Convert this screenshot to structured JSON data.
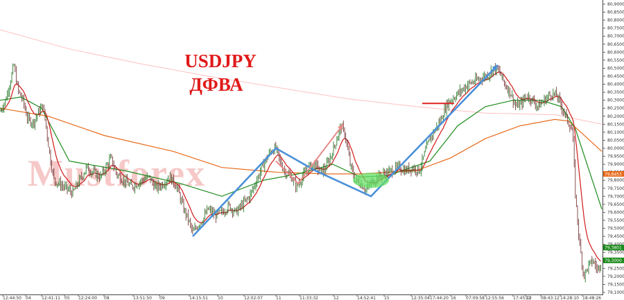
{
  "chart_data": {
    "type": "candlestick",
    "title": "USDJPY",
    "subtitle": "ДФВА",
    "watermark": "Mustforex",
    "ylim": [
      79.1,
      80.9
    ],
    "y_ticks": [
      "80,9000",
      "80,8500",
      "80,8000",
      "80,7500",
      "80,7000",
      "80,6500",
      "80,6000",
      "80,5500",
      "80,5000",
      "80,4500",
      "80,4000",
      "80,3500",
      "80,3000",
      "80,2500",
      "80,2000",
      "80,1500",
      "80,1000",
      "80,0500",
      "80,0000",
      "79,9500",
      "79,9000",
      "79,8500",
      "79,8000",
      "79,7500",
      "79,7000",
      "79,6500",
      "79,6000",
      "79,5500",
      "79,5000",
      "79,4500",
      "79,4000",
      "79,3500",
      "79,3000",
      "79,2500",
      "79,2000",
      "79,1500",
      "79,1000"
    ],
    "x_ticks": [
      "12:44:50",
      "04",
      "12:41:11",
      "05",
      "12:24:00",
      "08",
      "13:51:50",
      "09",
      "14:15:51",
      "10",
      "12:02:07",
      "11",
      "11:33:32",
      "12",
      "14:52:41",
      "15",
      "12:35:04",
      "17:44:20",
      "16",
      "07:09:58",
      "12:55:56",
      "17:45:12",
      "17",
      "08:43:12",
      "14:28:10",
      "18:48:26"
    ],
    "price_series": [
      [
        0,
        80.23
      ],
      [
        8,
        80.3
      ],
      [
        15,
        80.42
      ],
      [
        20,
        80.52
      ],
      [
        26,
        80.36
      ],
      [
        33,
        80.3
      ],
      [
        40,
        80.18
      ],
      [
        48,
        80.16
      ],
      [
        55,
        80.22
      ],
      [
        62,
        80.27
      ],
      [
        67,
        80.12
      ],
      [
        72,
        79.95
      ],
      [
        78,
        79.8
      ],
      [
        85,
        79.78
      ],
      [
        95,
        79.75
      ],
      [
        105,
        79.72
      ],
      [
        115,
        79.8
      ],
      [
        125,
        79.88
      ],
      [
        135,
        79.85
      ],
      [
        145,
        79.82
      ],
      [
        155,
        79.9
      ],
      [
        160,
        79.94
      ],
      [
        168,
        79.84
      ],
      [
        178,
        79.8
      ],
      [
        190,
        79.76
      ],
      [
        205,
        79.8
      ],
      [
        215,
        79.82
      ],
      [
        225,
        79.75
      ],
      [
        235,
        79.78
      ],
      [
        245,
        79.82
      ],
      [
        255,
        79.76
      ],
      [
        265,
        79.62
      ],
      [
        272,
        79.55
      ],
      [
        278,
        79.47
      ],
      [
        285,
        79.52
      ],
      [
        292,
        79.55
      ],
      [
        300,
        79.62
      ],
      [
        310,
        79.58
      ],
      [
        320,
        79.6
      ],
      [
        330,
        79.64
      ],
      [
        340,
        79.6
      ],
      [
        350,
        79.65
      ],
      [
        360,
        79.7
      ],
      [
        370,
        79.8
      ],
      [
        380,
        79.9
      ],
      [
        390,
        79.98
      ],
      [
        398,
        80.0
      ],
      [
        405,
        79.9
      ],
      [
        412,
        79.85
      ],
      [
        420,
        79.82
      ],
      [
        428,
        79.76
      ],
      [
        436,
        79.82
      ],
      [
        445,
        79.88
      ],
      [
        455,
        79.9
      ],
      [
        462,
        79.85
      ],
      [
        470,
        79.88
      ],
      [
        478,
        79.96
      ],
      [
        485,
        80.05
      ],
      [
        492,
        80.14
      ],
      [
        498,
        80.08
      ],
      [
        505,
        79.9
      ],
      [
        512,
        79.8
      ],
      [
        520,
        79.78
      ],
      [
        528,
        79.74
      ],
      [
        535,
        79.78
      ],
      [
        545,
        79.82
      ],
      [
        555,
        79.84
      ],
      [
        565,
        79.86
      ],
      [
        575,
        79.88
      ],
      [
        585,
        79.86
      ],
      [
        595,
        79.88
      ],
      [
        605,
        79.86
      ],
      [
        612,
        79.96
      ],
      [
        620,
        80.06
      ],
      [
        628,
        80.12
      ],
      [
        636,
        80.18
      ],
      [
        645,
        80.28
      ],
      [
        655,
        80.32
      ],
      [
        665,
        80.36
      ],
      [
        675,
        80.4
      ],
      [
        685,
        80.42
      ],
      [
        695,
        80.44
      ],
      [
        705,
        80.46
      ],
      [
        712,
        80.5
      ],
      [
        720,
        80.48
      ],
      [
        728,
        80.4
      ],
      [
        736,
        80.35
      ],
      [
        744,
        80.26
      ],
      [
        752,
        80.28
      ],
      [
        760,
        80.33
      ],
      [
        768,
        80.3
      ],
      [
        776,
        80.26
      ],
      [
        785,
        80.3
      ],
      [
        795,
        80.34
      ],
      [
        803,
        80.33
      ],
      [
        810,
        80.26
      ],
      [
        818,
        80.18
      ],
      [
        826,
        80.1
      ],
      [
        830,
        79.7
      ],
      [
        836,
        79.4
      ],
      [
        842,
        79.2
      ],
      [
        848,
        79.26
      ],
      [
        855,
        79.3
      ],
      [
        862,
        79.24
      ],
      [
        868,
        79.3
      ]
    ],
    "series": [
      {
        "name": "",
        "color": "#ffc0c0",
        "values": [
          [
            0,
            80.74
          ],
          [
            100,
            80.62
          ],
          [
            200,
            80.53
          ],
          [
            300,
            80.45
          ],
          [
            400,
            80.38
          ],
          [
            500,
            80.31
          ],
          [
            600,
            80.26
          ],
          [
            700,
            80.22
          ],
          [
            800,
            80.21
          ],
          [
            868,
            80.15
          ]
        ]
      },
      {
        "name": "",
        "color": "#e86a1a",
        "values": [
          [
            0,
            80.25
          ],
          [
            70,
            80.2
          ],
          [
            150,
            80.08
          ],
          [
            250,
            79.98
          ],
          [
            320,
            79.88
          ],
          [
            400,
            79.85
          ],
          [
            470,
            79.84
          ],
          [
            520,
            79.84
          ],
          [
            600,
            79.86
          ],
          [
            650,
            79.94
          ],
          [
            700,
            80.06
          ],
          [
            750,
            80.14
          ],
          [
            800,
            80.18
          ],
          [
            820,
            80.17
          ],
          [
            868,
            79.98
          ]
        ]
      },
      {
        "name": "",
        "color": "#1a8a1a",
        "values": [
          [
            0,
            80.3
          ],
          [
            30,
            80.32
          ],
          [
            60,
            80.25
          ],
          [
            100,
            79.92
          ],
          [
            180,
            79.86
          ],
          [
            260,
            79.78
          ],
          [
            320,
            79.7
          ],
          [
            380,
            79.8
          ],
          [
            430,
            79.84
          ],
          [
            480,
            79.9
          ],
          [
            520,
            79.82
          ],
          [
            560,
            79.83
          ],
          [
            620,
            79.92
          ],
          [
            660,
            80.14
          ],
          [
            700,
            80.26
          ],
          [
            740,
            80.3
          ],
          [
            780,
            80.3
          ],
          [
            810,
            80.26
          ],
          [
            830,
            80.12
          ],
          [
            868,
            79.62
          ]
        ]
      }
    ],
    "annotations": [
      {
        "type": "arrow",
        "color": "#4a90d9",
        "points": [
          [
            278,
            79.45
          ],
          [
            398,
            80.0
          ],
          [
            455,
            79.86
          ],
          [
            535,
            79.7
          ],
          [
            718,
            80.52
          ]
        ]
      },
      {
        "type": "arrow",
        "color": "#e88a8a",
        "points": [
          [
            398,
            79.92
          ],
          [
            430,
            79.78
          ],
          [
            495,
            80.15
          ]
        ]
      },
      {
        "type": "segment",
        "color": "#e02020",
        "points": [
          [
            609,
            80.28
          ],
          [
            655,
            80.28
          ]
        ]
      },
      {
        "type": "ellipse",
        "color": "#66dd66",
        "center": [
          535,
          79.8
        ]
      }
    ],
    "price_labels": [
      {
        "text": "79,8453",
        "value": 79.84,
        "color": "#e86a1a"
      },
      {
        "text": "79,3801",
        "value": 79.38,
        "color": "#1a8a1a"
      },
      {
        "text": "79,3000",
        "value": 79.3,
        "color": "#1a8a1a"
      }
    ]
  }
}
